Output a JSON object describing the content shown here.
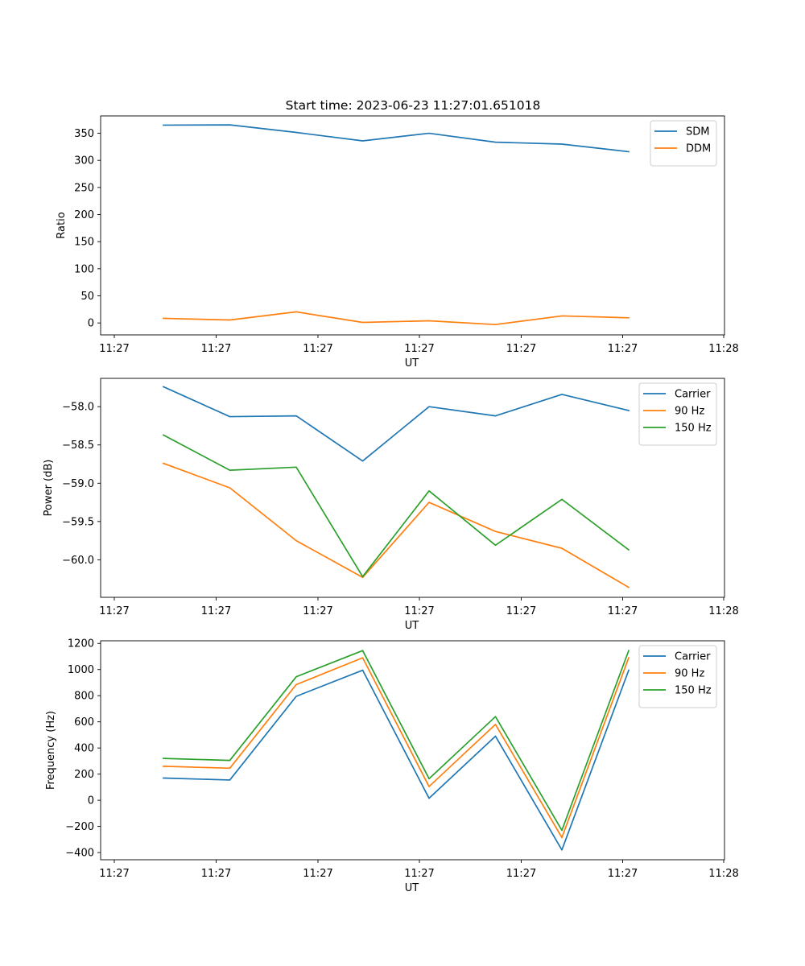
{
  "title": "Start time: 2023-06-23 11:27:01.651018",
  "colors": {
    "blue": "#1f77b4",
    "orange": "#ff7f0e",
    "green": "#2ca02c"
  },
  "chart_data": [
    {
      "type": "line",
      "ylabel": "Ratio",
      "xlabel": "UT",
      "ylim": [
        -22,
        382
      ],
      "legend_position": "top-right",
      "x_ticks": [
        "11:27",
        "11:27",
        "11:27",
        "11:27",
        "11:27",
        "11:27",
        "11:28"
      ],
      "y_ticks": [
        0,
        50,
        100,
        150,
        200,
        250,
        300,
        350
      ],
      "series": [
        {
          "name": "SDM",
          "color": "#1f77b4",
          "values": [
            365,
            365.5,
            351.5,
            336,
            350,
            333.5,
            330,
            316
          ]
        },
        {
          "name": "DDM",
          "color": "#ff7f0e",
          "values": [
            8.5,
            5.5,
            20.5,
            1,
            4,
            -3,
            13,
            9.5
          ]
        }
      ]
    },
    {
      "type": "line",
      "ylabel": "Power (dB)",
      "xlabel": "UT",
      "ylim": [
        -60.49,
        -57.63
      ],
      "legend_position": "top-right",
      "x_ticks": [
        "11:27",
        "11:27",
        "11:27",
        "11:27",
        "11:27",
        "11:27",
        "11:28"
      ],
      "y_ticks": [
        "−58.0",
        "−58.5",
        "−59.0",
        "−59.5",
        "−60.0"
      ],
      "y_tick_values": [
        -58.0,
        -58.5,
        -59.0,
        -59.5,
        -60.0
      ],
      "series": [
        {
          "name": "Carrier",
          "color": "#1f77b4",
          "values": [
            -57.74,
            -58.13,
            -58.12,
            -58.71,
            -58.0,
            -58.12,
            -57.84,
            -58.05
          ]
        },
        {
          "name": "90 Hz",
          "color": "#ff7f0e",
          "values": [
            -58.74,
            -59.06,
            -59.75,
            -60.23,
            -59.25,
            -59.63,
            -59.85,
            -60.36
          ]
        },
        {
          "name": "150 Hz",
          "color": "#2ca02c",
          "values": [
            -58.37,
            -58.83,
            -58.79,
            -60.22,
            -59.1,
            -59.81,
            -59.21,
            -59.87
          ]
        }
      ]
    },
    {
      "type": "line",
      "ylabel": "Frequency (Hz)",
      "xlabel": "UT",
      "ylim": [
        -455,
        1220
      ],
      "legend_position": "top-right",
      "x_ticks": [
        "11:27",
        "11:27",
        "11:27",
        "11:27",
        "11:27",
        "11:27",
        "11:28"
      ],
      "y_ticks": [
        "−400",
        "−200",
        "0",
        "200",
        "400",
        "600",
        "800",
        "1000",
        "1200"
      ],
      "y_tick_values": [
        -400,
        -200,
        0,
        200,
        400,
        600,
        800,
        1000,
        1200
      ],
      "series": [
        {
          "name": "Carrier",
          "color": "#1f77b4",
          "values": [
            170,
            155,
            795,
            995,
            15,
            490,
            -380,
            995
          ]
        },
        {
          "name": "90 Hz",
          "color": "#ff7f0e",
          "values": [
            260,
            245,
            885,
            1090,
            105,
            580,
            -285,
            1090
          ]
        },
        {
          "name": "150 Hz",
          "color": "#2ca02c",
          "values": [
            320,
            305,
            945,
            1145,
            165,
            640,
            -230,
            1145
          ]
        }
      ]
    }
  ]
}
